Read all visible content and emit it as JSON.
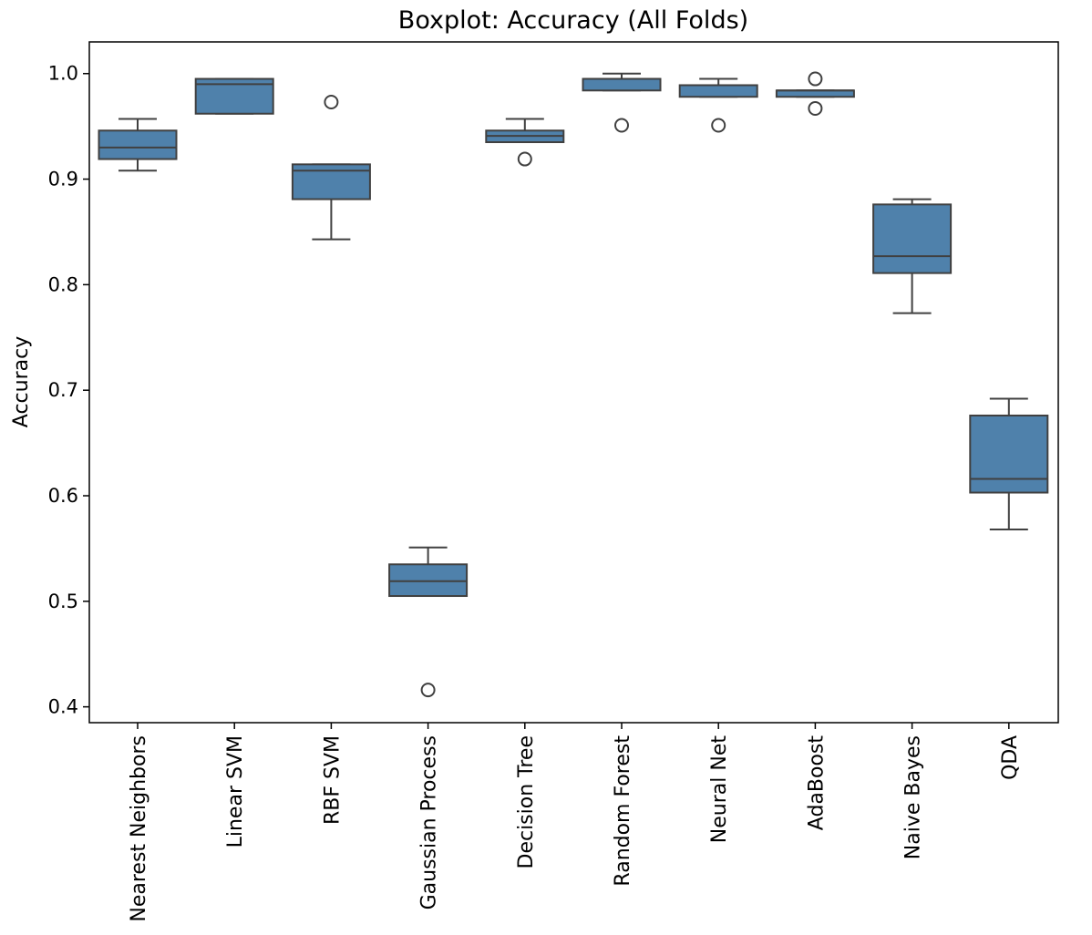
{
  "chart_data": {
    "type": "boxplot",
    "title": "Boxplot: Accuracy (All Folds)",
    "xlabel": "",
    "ylabel": "Accuracy",
    "ylim": [
      0.385,
      1.03
    ],
    "yticks": [
      0.4,
      0.5,
      0.6,
      0.7,
      0.8,
      0.9,
      1.0
    ],
    "ytick_labels": [
      "0.4",
      "0.5",
      "0.6",
      "0.7",
      "0.8",
      "0.9",
      "1.0"
    ],
    "grid": false,
    "colors": {
      "box_fill": "#4f81ab",
      "line": "#404040",
      "frame": "#000000"
    },
    "categories": [
      "Nearest Neighbors",
      "Linear SVM",
      "RBF SVM",
      "Gaussian Process",
      "Decision Tree",
      "Random Forest",
      "Neural Net",
      "AdaBoost",
      "Naive Bayes",
      "QDA"
    ],
    "boxes": [
      {
        "whisker_low": 0.908,
        "q1": 0.919,
        "median": 0.93,
        "q3": 0.946,
        "whisker_high": 0.957,
        "outliers": []
      },
      {
        "whisker_low": 0.962,
        "q1": 0.962,
        "median": 0.99,
        "q3": 0.995,
        "whisker_high": 0.995,
        "outliers": []
      },
      {
        "whisker_low": 0.843,
        "q1": 0.881,
        "median": 0.908,
        "q3": 0.914,
        "whisker_high": 0.914,
        "outliers": [
          0.973
        ]
      },
      {
        "whisker_low": 0.505,
        "q1": 0.505,
        "median": 0.519,
        "q3": 0.535,
        "whisker_high": 0.551,
        "outliers": [
          0.416
        ]
      },
      {
        "whisker_low": 0.935,
        "q1": 0.935,
        "median": 0.941,
        "q3": 0.946,
        "whisker_high": 0.957,
        "outliers": [
          0.919
        ]
      },
      {
        "whisker_low": 0.984,
        "q1": 0.984,
        "median": 0.995,
        "q3": 0.995,
        "whisker_high": 1.0,
        "outliers": [
          0.951
        ]
      },
      {
        "whisker_low": 0.978,
        "q1": 0.978,
        "median": 0.989,
        "q3": 0.989,
        "whisker_high": 0.995,
        "outliers": [
          0.951
        ]
      },
      {
        "whisker_low": 0.978,
        "q1": 0.978,
        "median": 0.984,
        "q3": 0.984,
        "whisker_high": 0.984,
        "outliers": [
          0.995,
          0.967
        ]
      },
      {
        "whisker_low": 0.773,
        "q1": 0.811,
        "median": 0.827,
        "q3": 0.876,
        "whisker_high": 0.881,
        "outliers": []
      },
      {
        "whisker_low": 0.568,
        "q1": 0.603,
        "median": 0.616,
        "q3": 0.676,
        "whisker_high": 0.692,
        "outliers": []
      }
    ]
  }
}
